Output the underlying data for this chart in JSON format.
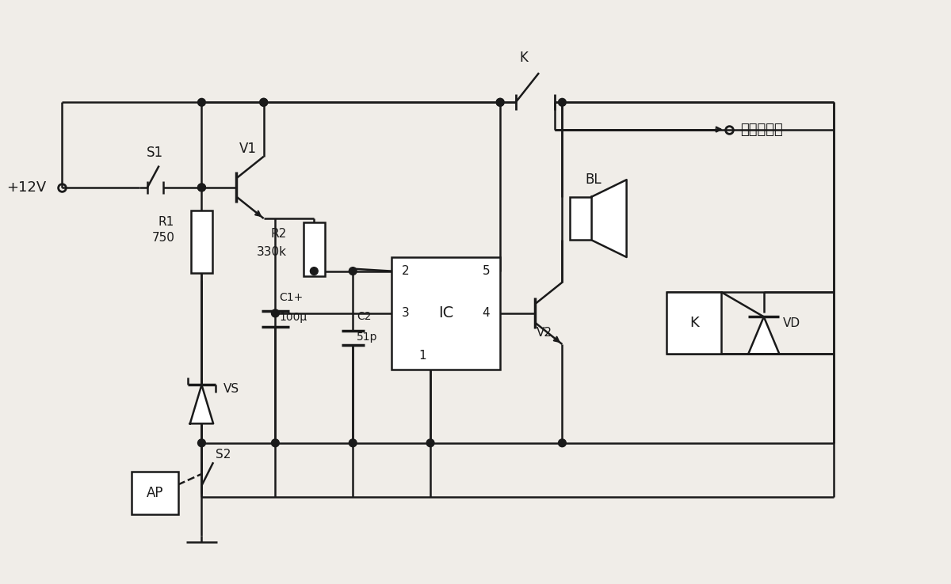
{
  "bg_color": "#f0ede8",
  "line_color": "#1a1a1a",
  "label_12v": "+12V",
  "label_s1": "S1",
  "label_v1": "V1",
  "label_r1": "R1",
  "label_r1_val": "750",
  "label_r2": "R2",
  "label_r2_val": "330k",
  "label_c1a": "C1+",
  "label_c1b": "100μ",
  "label_c2": "C2",
  "label_c2_val": "51p",
  "label_vs": "VS",
  "label_ic": "IC",
  "label_bl": "BL",
  "label_v2": "V2",
  "label_k_box": "K",
  "label_vd": "VD",
  "label_s2": "S2",
  "label_ap": "AP",
  "label_k_sw": "K",
  "label_connect": "接点火系统",
  "pin2": "2",
  "pin3": "3",
  "pin4": "4",
  "pin5": "5",
  "pin1": "1"
}
